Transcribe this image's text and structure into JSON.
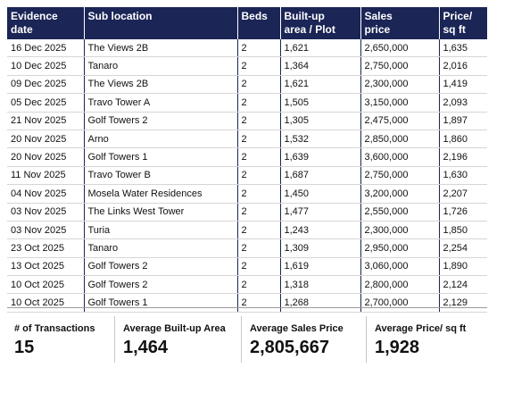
{
  "table": {
    "header": [
      "Evidence\ndate",
      "Sub location",
      "Beds",
      "Built-up\narea / Plot",
      "Sales\nprice",
      "Price/\nsq ft"
    ],
    "rows": [
      [
        "16 Dec 2025",
        "The Views 2B",
        "2",
        "1,621",
        "2,650,000",
        "1,635"
      ],
      [
        "10 Dec 2025",
        "Tanaro",
        "2",
        "1,364",
        "2,750,000",
        "2,016"
      ],
      [
        "09 Dec 2025",
        "The Views 2B",
        "2",
        "1,621",
        "2,300,000",
        "1,419"
      ],
      [
        "05 Dec 2025",
        "Travo Tower A",
        "2",
        "1,505",
        "3,150,000",
        "2,093"
      ],
      [
        "21 Nov 2025",
        "Golf Towers 2",
        "2",
        "1,305",
        "2,475,000",
        "1,897"
      ],
      [
        "20 Nov 2025",
        "Arno",
        "2",
        "1,532",
        "2,850,000",
        "1,860"
      ],
      [
        "20 Nov 2025",
        "Golf Towers 1",
        "2",
        "1,639",
        "3,600,000",
        "2,196"
      ],
      [
        "11 Nov 2025",
        "Travo Tower B",
        "2",
        "1,687",
        "2,750,000",
        "1,630"
      ],
      [
        "04 Nov 2025",
        "Mosela Water Residences",
        "2",
        "1,450",
        "3,200,000",
        "2,207"
      ],
      [
        "03 Nov 2025",
        "The Links West Tower",
        "2",
        "1,477",
        "2,550,000",
        "1,726"
      ],
      [
        "03 Nov 2025",
        "Turia",
        "2",
        "1,243",
        "2,300,000",
        "1,850"
      ],
      [
        "23 Oct 2025",
        "Tanaro",
        "2",
        "1,309",
        "2,950,000",
        "2,254"
      ],
      [
        "13 Oct 2025",
        "Golf Towers 2",
        "2",
        "1,619",
        "3,060,000",
        "1,890"
      ],
      [
        "10 Oct 2025",
        "Golf Towers 2",
        "2",
        "1,318",
        "2,800,000",
        "2,124"
      ],
      [
        "10 Oct 2025",
        "Golf Towers 1",
        "2",
        "1,268",
        "2,700,000",
        "2,129"
      ]
    ]
  },
  "summary": [
    {
      "label": "# of Transactions",
      "value": "15"
    },
    {
      "label": "Average Built-up Area",
      "value": "1,464"
    },
    {
      "label": "Average Sales Price",
      "value": "2,805,667"
    },
    {
      "label": "Average Price/ sq ft",
      "value": "1,928"
    }
  ]
}
